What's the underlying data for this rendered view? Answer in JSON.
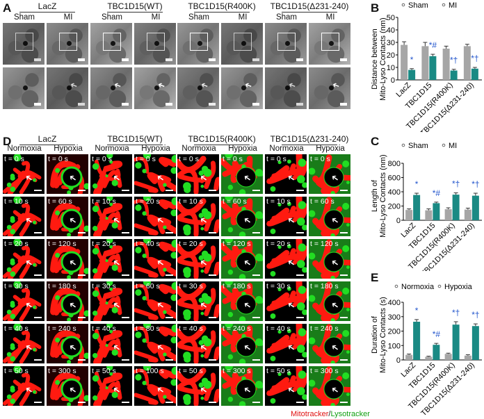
{
  "panel_labels": {
    "a": "A",
    "b": "B",
    "c": "C",
    "d": "D",
    "e": "E"
  },
  "panel_a": {
    "groups": [
      "LacZ",
      "TBC1D15(WT)",
      "TBC1D15(R400K)",
      "TBC1D15(Δ231-240)"
    ],
    "conditions": [
      "Sham",
      "MI"
    ]
  },
  "panel_d": {
    "groups": [
      "LacZ",
      "TBC1D15(WT)",
      "TBC1D15(R400K)",
      "TBC1D15(Δ231-240)"
    ],
    "conditions": [
      "Normoxia",
      "Hypoxia"
    ],
    "timepoints": [
      [
        "t = 0 s",
        "t = 10 s",
        "t = 20 s",
        "t = 30 s",
        "t = 40 s",
        "t = 50 s"
      ],
      [
        "t = 0 s",
        "t = 60 s",
        "t = 120 s",
        "t = 180 s",
        "t = 240 s",
        "t = 300 s"
      ],
      [
        "t = 0 s",
        "t = 10 s",
        "t = 20 s",
        "t = 30 s",
        "t = 40 s",
        "t = 50 s"
      ],
      [
        "t = 0 s",
        "t = 20 s",
        "t = 40 s",
        "t = 60 s",
        "t = 80 s",
        "t = 100 s"
      ],
      [
        "t = 0 s",
        "t = 10 s",
        "t = 20 s",
        "t = 30 s",
        "t = 40 s",
        "t = 50 s"
      ],
      [
        "t = 0 s",
        "t = 60 s",
        "t = 120 s",
        "t = 180 s",
        "t = 240 s",
        "t = 300 s"
      ],
      [
        "t = 0 s",
        "t = 10 s",
        "t = 20 s",
        "t = 30 s",
        "t = 40 s",
        "t = 50 s"
      ],
      [
        "t = 0 s",
        "t = 60 s",
        "t = 120 s",
        "t = 180 s",
        "t = 240 s",
        "t = 300 s"
      ]
    ],
    "legend_red": "Mitotracker",
    "legend_sep": "/",
    "legend_green": "Lysotracker",
    "colors": {
      "mito": "#ff1a10",
      "lyso": "#22dd22"
    }
  },
  "chart_data": [
    {
      "panel": "B",
      "type": "bar",
      "title": "",
      "ylabel": [
        "Distance between",
        "Mito-Lyso Contacts (nm)"
      ],
      "categories": [
        "LacZ",
        "TBC1D15",
        "TBC1D15(R400K)",
        "TBC1D15(Δ231-240)"
      ],
      "ylim": [
        0,
        50
      ],
      "yticks": [
        "0",
        "10",
        "20",
        "30",
        "40",
        "50"
      ],
      "legend": "top",
      "series": [
        {
          "name": "Sham",
          "values": [
            28,
            27,
            25,
            27
          ],
          "errors": [
            2.5,
            3,
            2,
            1.5
          ],
          "color": "#a6a6a6"
        },
        {
          "name": "MI",
          "values": [
            8,
            19,
            7.5,
            9
          ],
          "errors": [
            1,
            1.5,
            1,
            1
          ],
          "color": "#1a8a84"
        }
      ],
      "annotations": [
        "*",
        "*#",
        "*†",
        "*†"
      ],
      "annotation_color": "#2255cc"
    },
    {
      "panel": "C",
      "type": "bar",
      "title": "",
      "ylabel": [
        "Length of",
        "Mito-Lyso Contacts (nm)"
      ],
      "categories": [
        "LacZ",
        "TBC1D15",
        "TBC1D15(R400K)",
        "TBC1D15(Δ231-240)"
      ],
      "ylim": [
        0,
        800
      ],
      "yticks": [
        "0",
        "200",
        "400",
        "600",
        "800"
      ],
      "legend": "top",
      "series": [
        {
          "name": "Sham",
          "values": [
            145,
            140,
            155,
            150
          ],
          "errors": [
            15,
            20,
            20,
            20
          ],
          "color": "#a6a6a6"
        },
        {
          "name": "MI",
          "values": [
            355,
            240,
            360,
            345
          ],
          "errors": [
            25,
            15,
            25,
            35
          ],
          "color": "#1a8a84"
        }
      ],
      "annotations": [
        "*",
        "*#",
        "*†",
        "*†"
      ],
      "annotation_color": "#2255cc"
    },
    {
      "panel": "E",
      "type": "bar",
      "title": "",
      "ylabel": [
        "Duration of",
        "Mito-Lyso Contacts (s)"
      ],
      "categories": [
        "LacZ",
        "TBC1D15",
        "TBC1D15(R400K)",
        "TBC1D15(Δ231-240)"
      ],
      "ylim": [
        0,
        400
      ],
      "yticks": [
        "0",
        "100",
        "200",
        "300",
        "400"
      ],
      "legend": "top",
      "series": [
        {
          "name": "Normoxia",
          "values": [
            35,
            22,
            42,
            30
          ],
          "errors": [
            6,
            4,
            5,
            6
          ],
          "color": "#a6a6a6"
        },
        {
          "name": "Hypoxia",
          "values": [
            265,
            105,
            245,
            235
          ],
          "errors": [
            15,
            10,
            20,
            15
          ],
          "color": "#1a8a84"
        }
      ],
      "annotations": [
        "*",
        "*#",
        "*†",
        "*†"
      ],
      "annotation_color": "#2255cc"
    }
  ]
}
